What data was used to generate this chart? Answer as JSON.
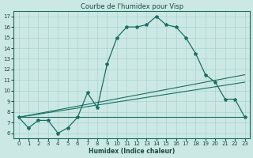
{
  "title": "Courbe de l'humidex pour Visp",
  "xlabel": "Humidex (Indice chaleur)",
  "bg_color": "#cce8e4",
  "line_color": "#1a6e63",
  "grid_color": "#a8d4cf",
  "xlim": [
    -0.5,
    23.5
  ],
  "ylim": [
    5.5,
    17.5
  ],
  "xticks": [
    0,
    1,
    2,
    3,
    4,
    5,
    6,
    7,
    8,
    9,
    10,
    11,
    12,
    13,
    14,
    15,
    16,
    17,
    18,
    19,
    20,
    21,
    22,
    23
  ],
  "yticks": [
    6,
    7,
    8,
    9,
    10,
    11,
    12,
    13,
    14,
    15,
    16,
    17
  ],
  "line1_x": [
    0,
    1,
    2,
    3,
    4,
    5,
    6,
    7,
    8,
    9,
    10,
    11,
    12,
    13,
    14,
    15,
    16,
    17,
    18,
    19,
    20,
    21,
    22,
    23
  ],
  "line1_y": [
    7.5,
    6.5,
    7.2,
    7.2,
    6.0,
    6.5,
    7.5,
    9.8,
    8.4,
    12.5,
    15.0,
    16.0,
    16.0,
    16.2,
    17.0,
    16.2,
    16.0,
    15.0,
    13.5,
    11.5,
    10.8,
    9.2,
    9.2,
    7.5
  ],
  "line2_x": [
    0,
    23
  ],
  "line2_y": [
    7.5,
    7.5
  ],
  "line3_x": [
    0,
    23
  ],
  "line3_y": [
    7.5,
    11.5
  ],
  "line4_x": [
    0,
    23
  ],
  "line4_y": [
    7.5,
    10.8
  ]
}
